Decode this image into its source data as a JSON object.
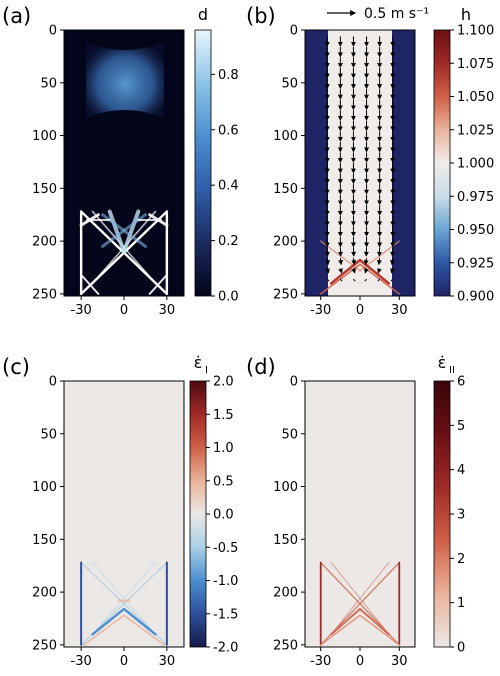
{
  "chart_data": [
    {
      "type": "heatmap",
      "panel_label": "(a)",
      "colorbar_label": "d",
      "colorbar_ticks": [
        "0.0",
        "0.2",
        "0.4",
        "0.6",
        "0.8"
      ],
      "colorbar_range": [
        0,
        0.96
      ],
      "colormap": [
        "#03051a",
        "#1b2a5e",
        "#2f5ea8",
        "#4b8fcf",
        "#8cc4e6",
        "#e8f6fb"
      ],
      "xticks": [
        "-30",
        "0",
        "30"
      ],
      "yticks": [
        "0",
        "50",
        "100",
        "150",
        "200",
        "250"
      ],
      "xlim": [
        -42,
        42
      ],
      "ylim": [
        252,
        0
      ],
      "background": "#03051a",
      "features": [
        {
          "kind": "damage-band",
          "y_range": [
            25,
            90
          ],
          "peak_value": 0.5
        },
        {
          "kind": "x-shaped-fractures",
          "y_range": [
            172,
            250
          ],
          "peak_value": 0.96
        }
      ]
    },
    {
      "type": "heatmap",
      "panel_label": "(b)",
      "colorbar_label": "h",
      "colorbar_ticks": [
        "0.900",
        "0.925",
        "0.950",
        "0.975",
        "1.000",
        "1.025",
        "1.050",
        "1.075",
        "1.100"
      ],
      "colorbar_range": [
        0.9,
        1.1
      ],
      "colormap": [
        "#1f2466",
        "#2d58a6",
        "#6aa5d3",
        "#c8dde8",
        "#f0ecea",
        "#eab39b",
        "#cf6047",
        "#a02a26",
        "#6a1015"
      ],
      "quiver_key": "0.5 m s⁻¹",
      "xticks": [
        "-30",
        "0",
        "30"
      ],
      "yticks": [
        "0",
        "50",
        "100",
        "150",
        "200",
        "250"
      ],
      "xlim": [
        -42,
        42
      ],
      "ylim": [
        252,
        0
      ],
      "ice_value": 1.0,
      "ocean_value": 0.9,
      "ice_x_range": [
        -30,
        30
      ],
      "velocity_direction": "down"
    },
    {
      "type": "heatmap",
      "panel_label": "(c)",
      "colorbar_label": "ε̇",
      "colorbar_subscript": "I",
      "colorbar_ticks": [
        "-2.0",
        "-1.5",
        "-1.0",
        "-0.5",
        "0.0",
        "0.5",
        "1.0",
        "1.5",
        "2.0"
      ],
      "colorbar_range": [
        -2.0,
        2.0
      ],
      "colormap": [
        "#151a48",
        "#2d4f9c",
        "#4b8fcf",
        "#aacfe6",
        "#ebe8e6",
        "#eab39b",
        "#cf6047",
        "#a02a26",
        "#4e0b12"
      ],
      "xticks": [
        "-30",
        "0",
        "30"
      ],
      "yticks": [
        "0",
        "50",
        "100",
        "150",
        "200",
        "250"
      ],
      "xlim": [
        -42,
        42
      ],
      "ylim": [
        252,
        0
      ]
    },
    {
      "type": "heatmap",
      "panel_label": "(d)",
      "colorbar_label": "ε̇",
      "colorbar_subscript": "II",
      "colorbar_ticks": [
        "0",
        "1",
        "2",
        "3",
        "4",
        "5",
        "6"
      ],
      "colorbar_range": [
        0,
        6
      ],
      "colormap": [
        "#ebe8e6",
        "#eab39b",
        "#cf6047",
        "#a02a26",
        "#6a1015",
        "#3a0509"
      ],
      "xticks": [
        "-30",
        "0",
        "30"
      ],
      "yticks": [
        "0",
        "50",
        "100",
        "150",
        "200",
        "250"
      ],
      "xlim": [
        -42,
        42
      ],
      "ylim": [
        252,
        0
      ]
    }
  ]
}
